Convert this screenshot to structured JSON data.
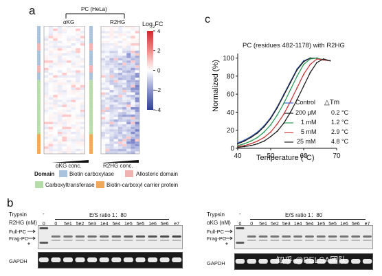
{
  "panel_a": {
    "label": "a",
    "group_label": "PC (HeLa)",
    "heat_left_title": "αKG",
    "heat_right_title": "R2HG",
    "heat_left_conc": "αKG conc.",
    "heat_right_conc": "R2HG conc.",
    "colorbar_title_pre": "Log",
    "colorbar_title_sub": "2",
    "colorbar_title_post": "FC",
    "colorbar_ticks": [
      "4",
      "2",
      "0",
      "−2",
      "−4"
    ],
    "legend_title": "Domain",
    "legend": [
      {
        "label": "Biotin carboxylase",
        "color": "#a9c3dc"
      },
      {
        "label": "Allosteric domain",
        "color": "#efb4b2"
      },
      {
        "label": "Carboxyltransferase",
        "color": "#b6dcaa"
      },
      {
        "label": "Biotin-carboxyl carrier protein",
        "color": "#f0a95a"
      }
    ]
  },
  "panel_c": {
    "label": "c",
    "title": "PC (residues 482-1178) with R2HG",
    "ylabel": "Normalized (%)",
    "xlabel": "Temperature (°C)",
    "legend_dtm_header": "△Tm",
    "legend_entries": [
      {
        "label": "Control",
        "dtm": "",
        "color": "#3a63c6"
      },
      {
        "label": "200 μM",
        "dtm": "0.2 °C",
        "color": "#1a1a1a"
      },
      {
        "label": "1 mM",
        "dtm": "1.2 °C",
        "color": "#2e9a58"
      },
      {
        "label": "5 mM",
        "dtm": "2.9 °C",
        "color": "#c63a3a"
      },
      {
        "label": "25 mM",
        "dtm": "4.8 °C",
        "color": "#222222"
      }
    ]
  },
  "chart_data": {
    "type": "line",
    "title": "PC (residues 482-1178) with R2HG",
    "xlabel": "Temperature (°C)",
    "ylabel": "Normalized (%)",
    "xlim": [
      40,
      70
    ],
    "ylim": [
      0,
      105
    ],
    "xticks": [
      40,
      50,
      60,
      70
    ],
    "yticks": [
      0,
      20,
      40,
      60,
      80,
      100
    ],
    "series": [
      {
        "name": "Control",
        "color": "#3a63c6",
        "x": [
          40,
          42,
          44,
          46,
          48,
          50,
          52,
          54,
          56,
          58,
          60,
          62,
          64,
          66,
          68
        ],
        "y": [
          6,
          9,
          13,
          18,
          25,
          34,
          46,
          60,
          74,
          88,
          97,
          100,
          100,
          98,
          97
        ]
      },
      {
        "name": "200 μM",
        "color": "#1a1a1a",
        "x": [
          40,
          42,
          44,
          46,
          48,
          50,
          52,
          54,
          56,
          58,
          60,
          62,
          64,
          66,
          68
        ],
        "y": [
          5,
          8,
          12,
          17,
          24,
          33,
          45,
          59,
          73,
          87,
          96,
          100,
          100,
          98,
          97
        ]
      },
      {
        "name": "1 mM",
        "color": "#2e9a58",
        "x": [
          40,
          42,
          44,
          46,
          48,
          50,
          52,
          54,
          56,
          58,
          60,
          62,
          64,
          66,
          68
        ],
        "y": [
          3,
          5,
          8,
          12,
          18,
          26,
          37,
          50,
          65,
          80,
          93,
          99,
          100,
          98,
          97
        ]
      },
      {
        "name": "5 mM",
        "color": "#c63a3a",
        "x": [
          40,
          42,
          44,
          46,
          48,
          50,
          52,
          54,
          56,
          58,
          60,
          62,
          64,
          66,
          68
        ],
        "y": [
          2,
          3,
          5,
          8,
          12,
          18,
          27,
          38,
          52,
          67,
          82,
          93,
          99,
          98,
          97
        ]
      },
      {
        "name": "25 mM",
        "color": "#222222",
        "x": [
          40,
          42,
          44,
          46,
          48,
          50,
          52,
          54,
          56,
          58,
          60,
          62,
          64,
          66,
          68
        ],
        "y": [
          1,
          2,
          3,
          5,
          8,
          13,
          19,
          28,
          40,
          54,
          69,
          84,
          95,
          99,
          97
        ]
      }
    ]
  },
  "panel_b": {
    "label": "b",
    "blots": [
      {
        "trypsin_label": "Trypsin",
        "dash": "-",
        "ratio_label": "E/S ratio 1：80",
        "compound_label": "R2HG (nM)",
        "lanes": [
          "0",
          "0",
          "5e1",
          "5e2",
          "5e3",
          "1e4",
          "5e4",
          "1e5",
          "5e5",
          "1e6",
          "5e6",
          "e7"
        ],
        "band_labels": [
          "Full-PC",
          "Frag-PC"
        ],
        "star": "*",
        "gapdh": "GAPDH",
        "frag_level": [
          0.0,
          0.55,
          0.6,
          0.62,
          0.66,
          0.7,
          0.75,
          0.8,
          0.86,
          0.9,
          0.95,
          1.0
        ]
      },
      {
        "trypsin_label": "Trypsin",
        "dash": "-",
        "ratio_label": "E/S ratio 1：80",
        "compound_label": "αKG (nM)",
        "lanes": [
          "0",
          "0",
          "5e1",
          "5e2",
          "5e3",
          "1e4",
          "5e4",
          "1e5",
          "5e5",
          "1e6",
          "5e6",
          "e7"
        ],
        "band_labels": [
          "Full-PC",
          "Frag-PC"
        ],
        "star": "*",
        "gapdh": "GAPDH",
        "frag_level": [
          0.0,
          0.6,
          0.6,
          0.6,
          0.6,
          0.6,
          0.6,
          0.6,
          0.6,
          0.6,
          0.62,
          0.62
        ]
      }
    ]
  },
  "watermark": "知乎 @PELSA团队"
}
